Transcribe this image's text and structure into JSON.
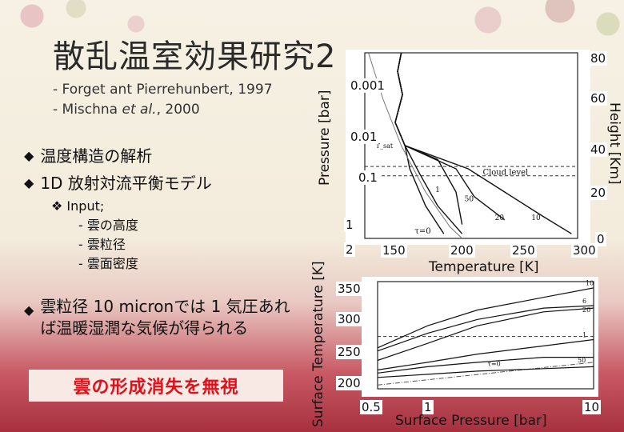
{
  "slide": {
    "title": "散乱温室効果研究2",
    "references": [
      "- Forget ant Pierrehunbert, 1997",
      "- Mischna ",
      "et al.",
      ", 2000"
    ],
    "bullets": [
      "温度構造の解析",
      "1D 放射対流平衡モデル"
    ],
    "input_label": "❖ Input;",
    "inputs": [
      "- 雲の高度",
      "- 雲粒径",
      "- 雲面密度"
    ],
    "conclusion": "雲粒径 10 micronでは 1 気圧あれば温暖湿潤な気候が得られる",
    "highlight": "雲の形成消失を無視"
  },
  "chart_data": [
    {
      "type": "line",
      "xlabel": "Temperature [K]",
      "ylabel": "Pressure [bar]",
      "y2label": "Height [Km]",
      "x_ticks": [
        "150",
        "200",
        "250",
        "300"
      ],
      "y_ticks": [
        "0.001",
        "0.01",
        "0.1",
        "1",
        "2"
      ],
      "y2_ticks": [
        "80",
        "60",
        "40",
        "20",
        "0"
      ],
      "annotations": [
        "Cloud level",
        "τ=0",
        "1",
        "50",
        "20",
        "10",
        "T_sat"
      ],
      "xlim": [
        125,
        300
      ],
      "y2lim": [
        0,
        80
      ],
      "series": [
        {
          "name": "τ=0",
          "x": [
            155,
            152,
            156,
            150,
            158,
            162,
            175,
            190
          ],
          "y": [
            80,
            72,
            62,
            50,
            40,
            30,
            14,
            2
          ]
        },
        {
          "name": "1",
          "x": [
            155,
            152,
            156,
            150,
            158,
            170,
            185,
            205
          ],
          "y": [
            80,
            72,
            62,
            50,
            40,
            28,
            14,
            2
          ]
        },
        {
          "name": "50",
          "x": [
            155,
            152,
            156,
            150,
            158,
            185,
            200,
            205
          ],
          "y": [
            80,
            72,
            62,
            50,
            40,
            34,
            20,
            6
          ]
        },
        {
          "name": "20",
          "x": [
            155,
            152,
            156,
            150,
            158,
            200,
            215,
            240
          ],
          "y": [
            80,
            72,
            62,
            50,
            40,
            30,
            18,
            8
          ]
        },
        {
          "name": "10",
          "x": [
            155,
            152,
            156,
            150,
            158,
            210,
            240,
            270,
            295
          ],
          "y": [
            80,
            72,
            62,
            50,
            40,
            30,
            20,
            10,
            2
          ]
        },
        {
          "name": "T_sat",
          "x": [
            128,
            140,
            155,
            175,
            195,
            205
          ],
          "y": [
            80,
            60,
            40,
            20,
            5,
            0
          ]
        }
      ]
    },
    {
      "type": "line",
      "xlabel": "Surface Pressure [bar]",
      "ylabel": "Surface Temperature [K]",
      "x_ticks": [
        "0.5",
        "1",
        "10"
      ],
      "y_ticks": [
        "350",
        "300",
        "250",
        "200"
      ],
      "ylim": [
        190,
        360
      ],
      "annotations": [
        "10",
        "6",
        "20",
        "1",
        "50",
        "τ=0"
      ],
      "series": [
        {
          "name": "10",
          "x": [
            0.5,
            1,
            2,
            5,
            10
          ],
          "y": [
            255,
            290,
            315,
            335,
            350
          ]
        },
        {
          "name": "6",
          "x": [
            0.5,
            1,
            2,
            5,
            10
          ],
          "y": [
            250,
            278,
            300,
            318,
            322
          ]
        },
        {
          "name": "20",
          "x": [
            0.5,
            1,
            2,
            5,
            10
          ],
          "y": [
            235,
            262,
            290,
            312,
            318
          ]
        },
        {
          "name": "1",
          "x": [
            0.5,
            1,
            2,
            5,
            10
          ],
          "y": [
            220,
            232,
            245,
            258,
            268
          ]
        },
        {
          "name": "50",
          "x": [
            0.5,
            1,
            2,
            5,
            10
          ],
          "y": [
            215,
            225,
            232,
            240,
            240
          ]
        },
        {
          "name": "τ=0",
          "x": [
            0.5,
            1,
            2,
            5,
            10
          ],
          "y": [
            208,
            213,
            218,
            222,
            225
          ]
        }
      ]
    }
  ]
}
